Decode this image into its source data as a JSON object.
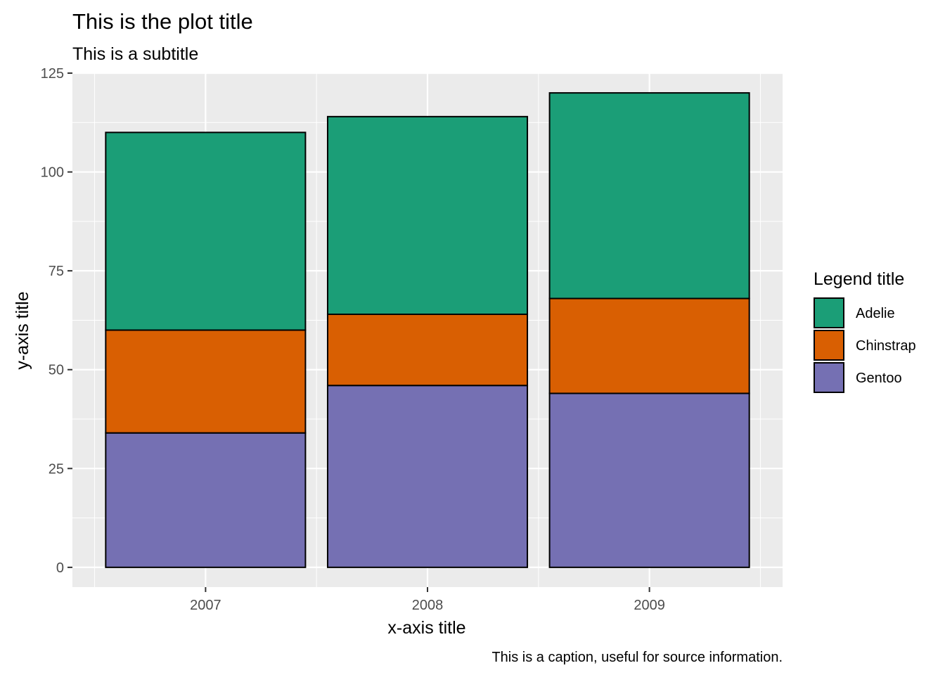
{
  "chart_data": {
    "type": "bar",
    "stacked": true,
    "title": "This is the plot title",
    "subtitle": "This is a subtitle",
    "xlabel": "x-axis title",
    "ylabel": "y-axis title",
    "caption": "This is a caption, useful for source information.",
    "categories": [
      "2007",
      "2008",
      "2009"
    ],
    "ylim": [
      -5,
      125
    ],
    "yticks": [
      0,
      25,
      50,
      75,
      100,
      125
    ],
    "grid": true,
    "legend": {
      "title": "Legend title",
      "placement": "right"
    },
    "series": [
      {
        "name": "Adelie",
        "color": "#1B9E77",
        "values": [
          50,
          50,
          52
        ]
      },
      {
        "name": "Chinstrap",
        "color": "#D95F02",
        "values": [
          26,
          18,
          24
        ]
      },
      {
        "name": "Gentoo",
        "color": "#7570B3",
        "values": [
          34,
          46,
          44
        ]
      }
    ]
  }
}
